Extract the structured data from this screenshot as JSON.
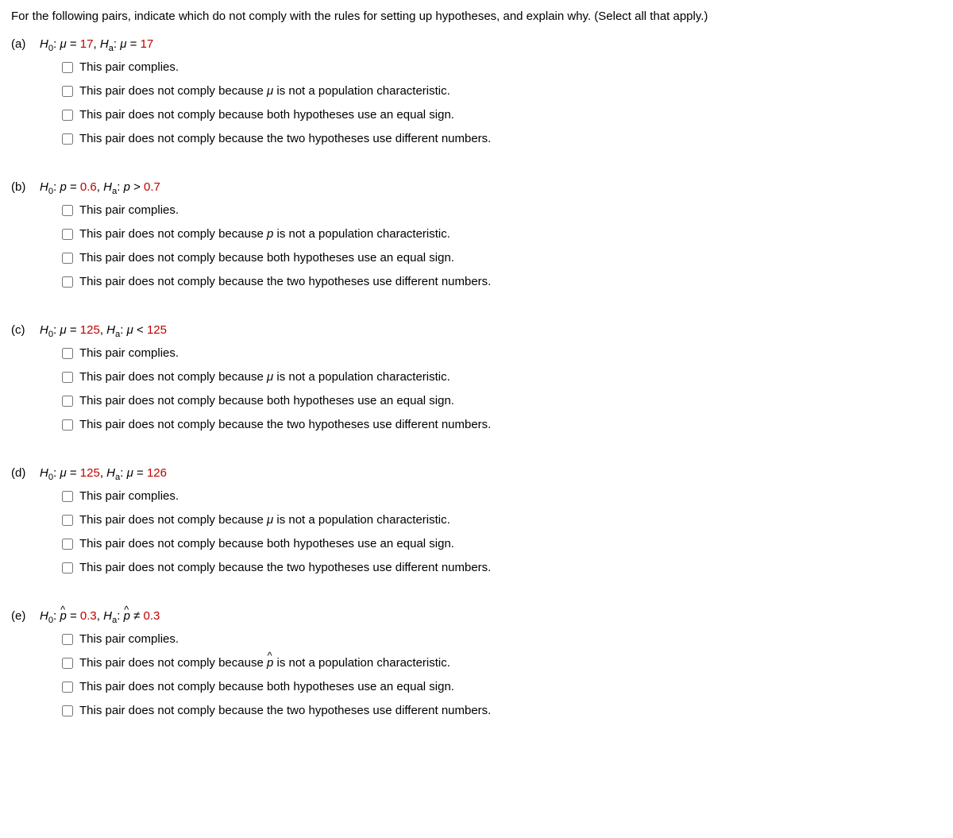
{
  "instruction": "For the following pairs, indicate which do not comply with the rules for setting up hypotheses, and explain why. (Select all that apply.)",
  "colors": {
    "text": "#000000",
    "highlight": "#c00000",
    "background": "#ffffff"
  },
  "fonts": {
    "family": "Verdana, Geneva, sans-serif",
    "size_pt": 11
  },
  "questions": [
    {
      "label": "(a)",
      "h0_symbol": "μ",
      "h0_value": "17",
      "ha_symbol": "μ",
      "ha_op": "=",
      "ha_value": "17",
      "param_symbol": "μ",
      "param_is_hat": false,
      "options": [
        "This pair complies.",
        "This pair does not comply because {param} is not a population characteristic.",
        "This pair does not comply because both hypotheses use an equal sign.",
        "This pair does not comply because the two hypotheses use different numbers."
      ]
    },
    {
      "label": "(b)",
      "h0_symbol": "p",
      "h0_value": "0.6",
      "ha_symbol": "p",
      "ha_op": ">",
      "ha_value": "0.7",
      "param_symbol": "p",
      "param_is_hat": false,
      "options": [
        "This pair complies.",
        "This pair does not comply because {param} is not a population characteristic.",
        "This pair does not comply because both hypotheses use an equal sign.",
        "This pair does not comply because the two hypotheses use different numbers."
      ]
    },
    {
      "label": "(c)",
      "h0_symbol": "μ",
      "h0_value": "125",
      "ha_symbol": "μ",
      "ha_op": "<",
      "ha_value": "125",
      "param_symbol": "μ",
      "param_is_hat": false,
      "options": [
        "This pair complies.",
        "This pair does not comply because {param} is not a population characteristic.",
        "This pair does not comply because both hypotheses use an equal sign.",
        "This pair does not comply because the two hypotheses use different numbers."
      ]
    },
    {
      "label": "(d)",
      "h0_symbol": "μ",
      "h0_value": "125",
      "ha_symbol": "μ",
      "ha_op": "=",
      "ha_value": "126",
      "param_symbol": "μ",
      "param_is_hat": false,
      "options": [
        "This pair complies.",
        "This pair does not comply because {param} is not a population characteristic.",
        "This pair does not comply because both hypotheses use an equal sign.",
        "This pair does not comply because the two hypotheses use different numbers."
      ]
    },
    {
      "label": "(e)",
      "h0_symbol": "p",
      "h0_value": "0.3",
      "ha_symbol": "p",
      "ha_op": "≠",
      "ha_value": "0.3",
      "param_symbol": "p",
      "param_is_hat": true,
      "options": [
        "This pair complies.",
        "This pair does not comply because {param} is not a population characteristic.",
        "This pair does not comply because both hypotheses use an equal sign.",
        "This pair does not comply because the two hypotheses use different numbers."
      ]
    }
  ]
}
